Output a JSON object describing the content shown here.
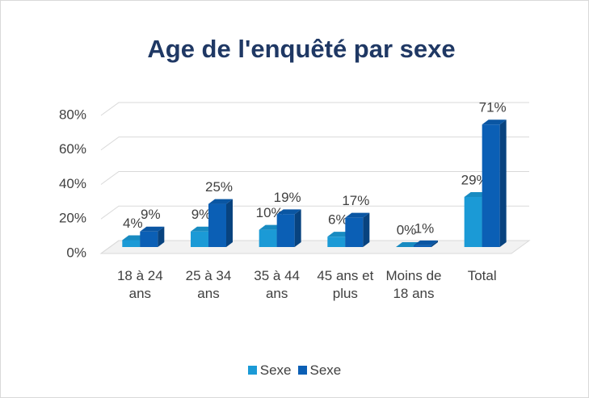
{
  "chart_data": {
    "type": "bar3d",
    "title": "Age de l'enquêté par sexe",
    "categories": [
      "18 à 24 ans",
      "25 à 34 ans",
      "35 à 44 ans",
      "45 ans et plus",
      "Moins de 18 ans",
      "Total"
    ],
    "series": [
      {
        "name": "Sexe",
        "color": "#1b9ad6",
        "values": [
          4,
          9,
          10,
          6,
          0,
          29
        ],
        "value_labels": [
          "4%",
          "9%",
          "10%",
          "6%",
          "0%",
          "29%"
        ]
      },
      {
        "name": "Sexe",
        "color": "#0b5fb5",
        "values": [
          9,
          25,
          19,
          17,
          1,
          71
        ],
        "value_labels": [
          "9%",
          "25%",
          "19%",
          "17%",
          "1%",
          "71%"
        ]
      }
    ],
    "ylim": [
      0,
      80
    ],
    "yticks": [
      {
        "value": 0,
        "label": "0%"
      },
      {
        "value": 20,
        "label": "20%"
      },
      {
        "value": 40,
        "label": "40%"
      },
      {
        "value": 60,
        "label": "60%"
      },
      {
        "value": 80,
        "label": "80%"
      }
    ],
    "grid": true,
    "legend": "bottom"
  }
}
